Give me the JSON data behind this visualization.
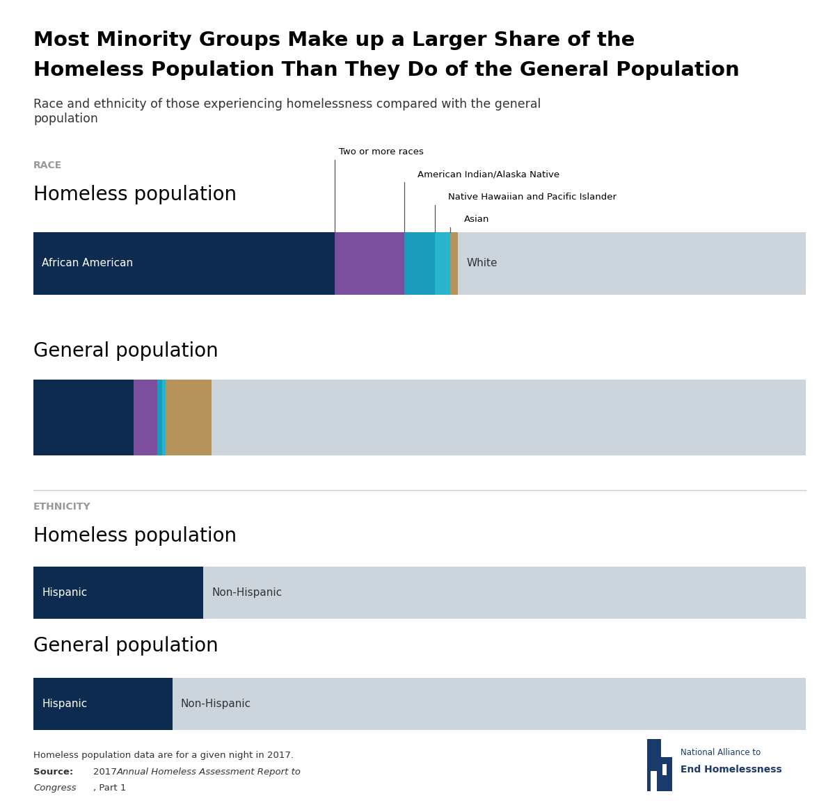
{
  "title_line1": "Most Minority Groups Make up a Larger Share of the",
  "title_line2": "Homeless Population Than They Do of the General Population",
  "subtitle": "Race and ethnicity of those experiencing homelessness compared with the general\npopulation",
  "race_label": "RACE",
  "ethnicity_label": "ETHNICITY",
  "homeless_label": "Homeless population",
  "general_label": "General population",
  "race_homeless": [
    [
      "African American",
      39
    ],
    [
      "Two or more races",
      9
    ],
    [
      "American Indian/Alaska Native",
      4
    ],
    [
      "Native Hawaiian and Pacific Islander",
      2
    ],
    [
      "Asian",
      1
    ],
    [
      "White",
      45
    ]
  ],
  "race_general": [
    [
      "African American",
      13
    ],
    [
      "Two or more races",
      3
    ],
    [
      "American Indian/Alaska Native",
      0.7
    ],
    [
      "Native Hawaiian and Pacific Islander",
      0.4
    ],
    [
      "Asian",
      6
    ],
    [
      "White",
      76.9
    ]
  ],
  "ethnicity_homeless": [
    [
      "Hispanic",
      22
    ],
    [
      "Non-Hispanic",
      78
    ]
  ],
  "ethnicity_general": [
    [
      "Hispanic",
      18
    ],
    [
      "Non-Hispanic",
      82
    ]
  ],
  "race_colors": {
    "African American": "#0d2b4e",
    "Two or more races": "#7b4f9e",
    "American Indian/Alaska Native": "#1a9bbc",
    "Native Hawaiian and Pacific Islander": "#27b4cc",
    "Asian": "#b5935a",
    "White": "#ccd5db"
  },
  "ethnicity_colors": {
    "Hispanic": "#0d2b4e",
    "Non-Hispanic": "#ccd5db"
  },
  "background_color": "#ffffff",
  "text_dark": "#000000",
  "text_gray": "#999999",
  "text_medium": "#333333",
  "divider_color": "#cccccc",
  "logo_color": "#1a3a6b"
}
